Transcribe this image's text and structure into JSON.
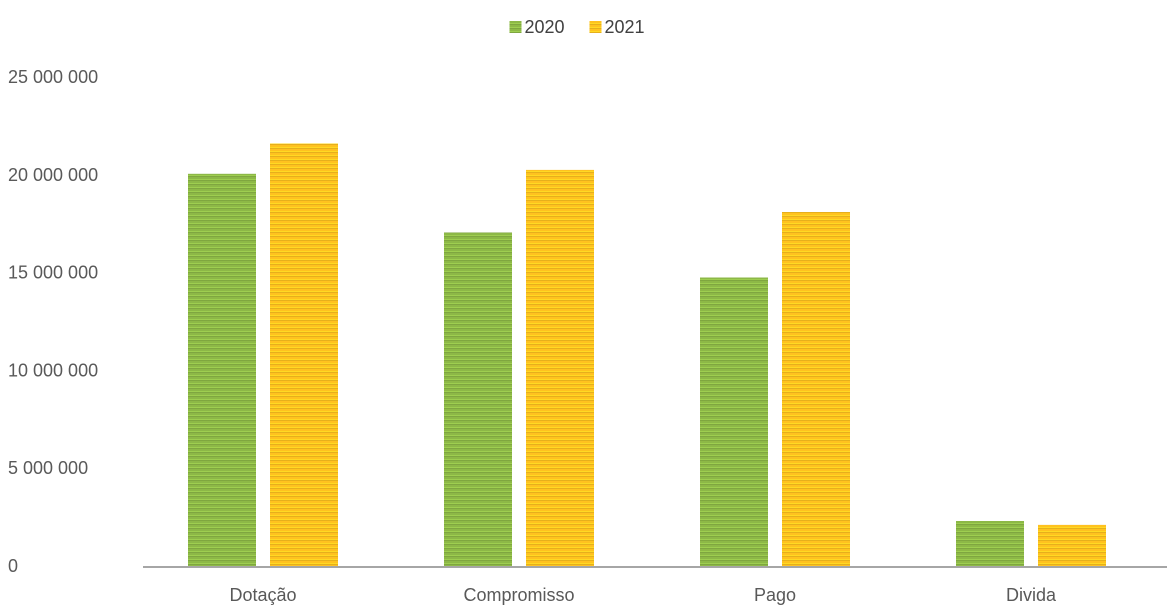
{
  "chart_data": {
    "type": "bar",
    "categories": [
      "Dotação",
      "Compromisso",
      "Pago",
      "Divida"
    ],
    "series": [
      {
        "name": "2020",
        "values": [
          20050000,
          17050000,
          14750000,
          2300000
        ],
        "color": "#8DB847"
      },
      {
        "name": "2021",
        "values": [
          21600000,
          20250000,
          18100000,
          2100000
        ],
        "color": "#FFC21F"
      }
    ],
    "ylim": [
      0,
      25000000
    ],
    "y_ticks": [
      {
        "value": 0,
        "label": "0"
      },
      {
        "value": 5000000,
        "label": "5 000 000"
      },
      {
        "value": 10000000,
        "label": "10 000 000"
      },
      {
        "value": 15000000,
        "label": "15 000 000"
      },
      {
        "value": 20000000,
        "label": "20 000 000"
      },
      {
        "value": 25000000,
        "label": "25 000 000"
      }
    ],
    "title": "",
    "xlabel": "",
    "ylabel": "",
    "grid": false,
    "legend_position": "top-center",
    "bar_pattern": "horizontal-stripes",
    "axis_color": "#A6A6A6"
  }
}
